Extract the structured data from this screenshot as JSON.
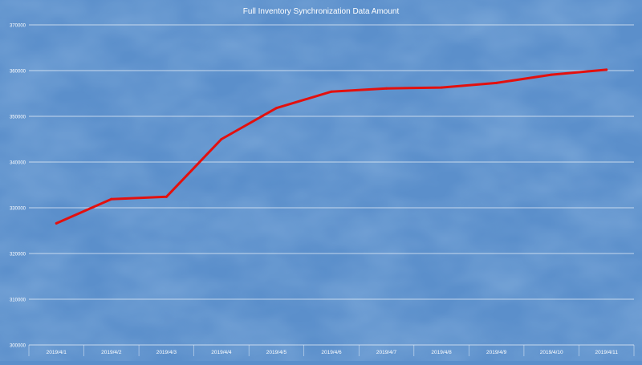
{
  "chart_data": {
    "type": "line",
    "title": "Full Inventory  Synchronization Data Amount",
    "xlabel": "",
    "ylabel": "",
    "categories": [
      "2019/4/1",
      "2019/4/2",
      "2019/4/3",
      "2019/4/4",
      "2019/4/5",
      "2019/4/6",
      "2019/4/7",
      "2019/4/8",
      "2019/4/9",
      "2019/4/10",
      "2019/4/11"
    ],
    "series": [
      {
        "values": [
          326600,
          331900,
          332400,
          345000,
          351800,
          355400,
          356100,
          356300,
          357300,
          359100,
          360200
        ]
      }
    ],
    "ylim": [
      300000,
      370000
    ],
    "yticks": [
      "300000",
      "310000",
      "320000",
      "330000",
      "340000",
      "350000",
      "360000",
      "370000"
    ],
    "grid": true,
    "legend": "none",
    "colors": {
      "background": "#5b8fcb",
      "line": "#e3100e",
      "gridline": "#ffffff",
      "text": "#ffffff"
    }
  }
}
